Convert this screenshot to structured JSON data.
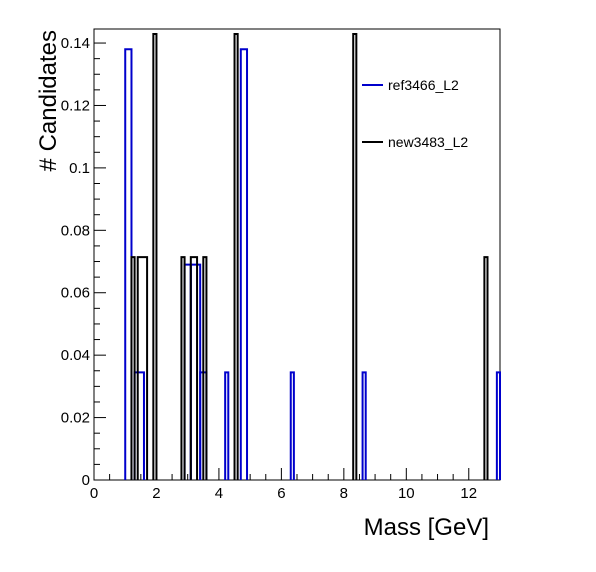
{
  "chart_data": {
    "type": "line",
    "title": "",
    "xlabel": "Mass [GeV]",
    "ylabel": "# Candidates",
    "xlim": [
      0,
      13
    ],
    "ylim": [
      0,
      0.1445
    ],
    "xticks": [
      "0",
      "2",
      "4",
      "6",
      "8",
      "10",
      "12"
    ],
    "yticks": [
      "0",
      "0.02",
      "0.04",
      "0.06",
      "0.08",
      "0.1",
      "0.12",
      "0.14"
    ],
    "grid": false,
    "legend": "top-right",
    "series": [
      {
        "name": "ref3466_L2",
        "color": "#0000cc",
        "style": "histogram-step",
        "bins": [
          {
            "lo": 1.0,
            "hi": 1.2,
            "value": 0.138
          },
          {
            "lo": 1.3,
            "hi": 1.6,
            "value": 0.0345
          },
          {
            "lo": 2.9,
            "hi": 3.1,
            "value": 0.069
          },
          {
            "lo": 3.1,
            "hi": 3.4,
            "value": 0.069
          },
          {
            "lo": 3.4,
            "hi": 3.6,
            "value": 0.0345
          },
          {
            "lo": 4.2,
            "hi": 4.3,
            "value": 0.0345
          },
          {
            "lo": 4.7,
            "hi": 4.9,
            "value": 0.138
          },
          {
            "lo": 6.3,
            "hi": 6.4,
            "value": 0.0345
          },
          {
            "lo": 8.6,
            "hi": 8.7,
            "value": 0.0345
          },
          {
            "lo": 12.9,
            "hi": 13.0,
            "value": 0.0345
          }
        ]
      },
      {
        "name": "new3483_L2",
        "color": "#000000",
        "style": "histogram-step",
        "bins": [
          {
            "lo": 1.2,
            "hi": 1.3,
            "value": 0.0714
          },
          {
            "lo": 1.4,
            "hi": 1.7,
            "value": 0.0714
          },
          {
            "lo": 1.9,
            "hi": 2.0,
            "value": 0.1429
          },
          {
            "lo": 2.8,
            "hi": 2.9,
            "value": 0.0714
          },
          {
            "lo": 3.1,
            "hi": 3.3,
            "value": 0.0714
          },
          {
            "lo": 3.5,
            "hi": 3.6,
            "value": 0.0714
          },
          {
            "lo": 4.5,
            "hi": 4.6,
            "value": 0.1429
          },
          {
            "lo": 8.3,
            "hi": 8.4,
            "value": 0.1429
          },
          {
            "lo": 12.5,
            "hi": 12.6,
            "value": 0.0714
          }
        ]
      }
    ]
  }
}
